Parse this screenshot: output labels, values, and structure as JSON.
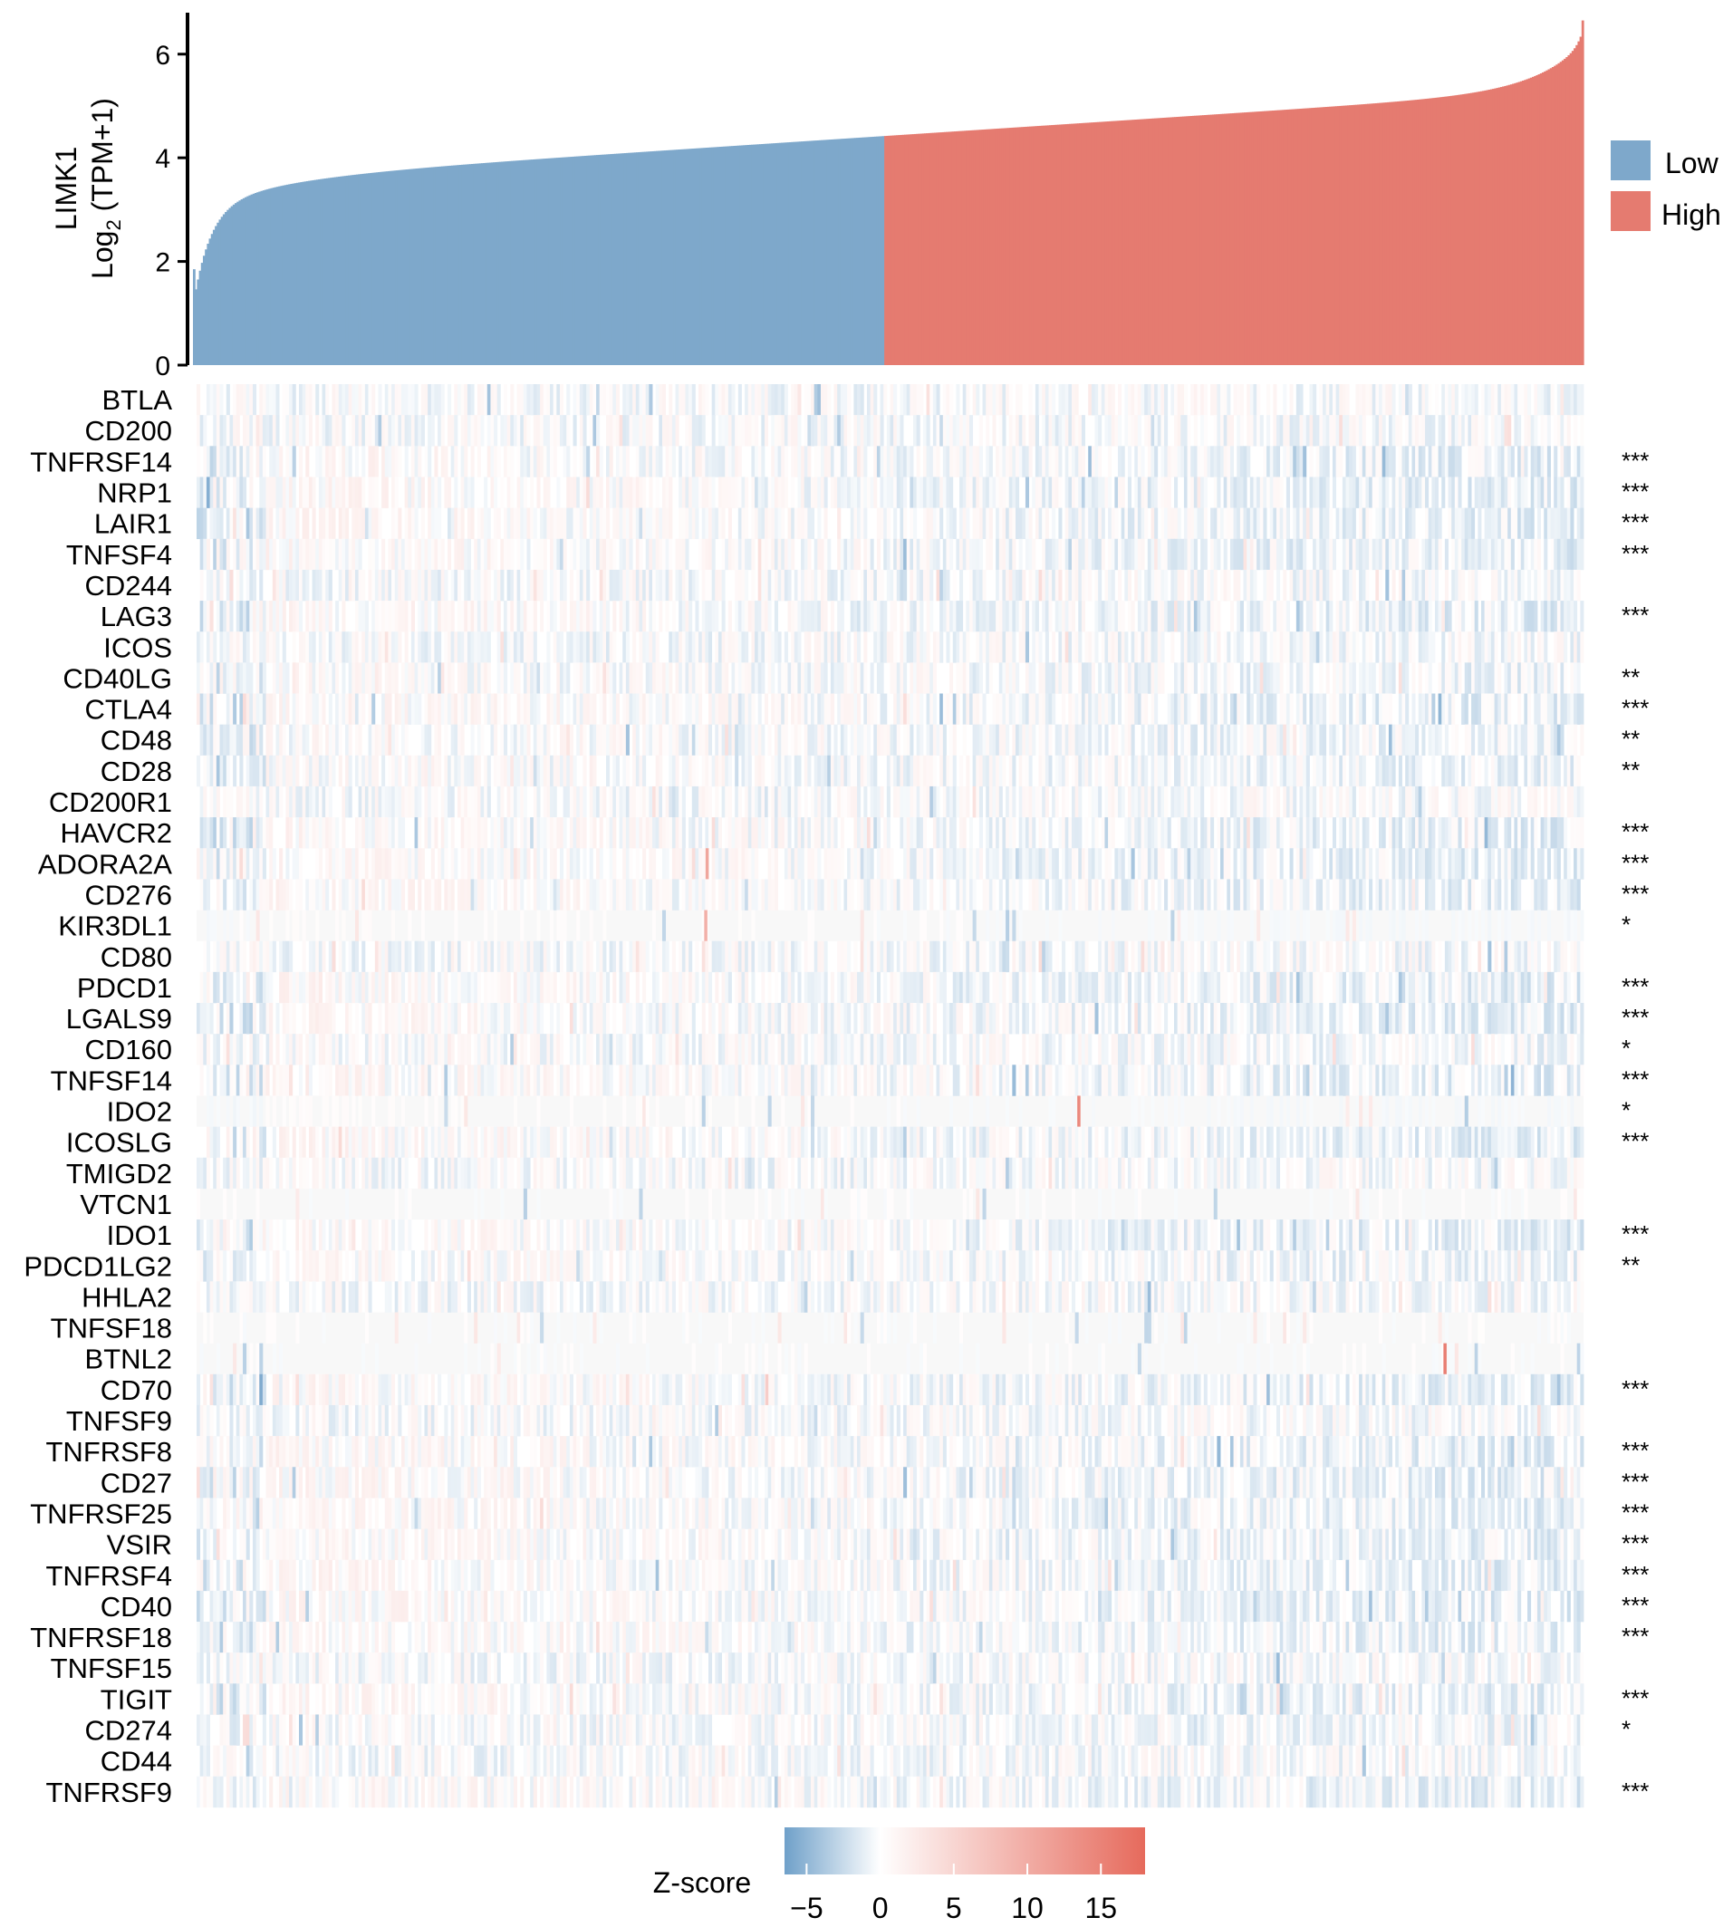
{
  "chart_data": [
    {
      "type": "bar",
      "ylabel_line1": "LIMK1",
      "ylabel_line2_pre": "Log",
      "ylabel_line2_sub": "2",
      "ylabel_line2_post": " (TPM+1)",
      "ylim": [
        0,
        6.8
      ],
      "yticks": [
        "0",
        "2",
        "4",
        "6"
      ],
      "samples_n": 700,
      "split_fraction": 0.497,
      "min_value": 1.85,
      "max_value": 6.65,
      "series": [
        {
          "name": "Low",
          "color": "#7ea8cb"
        },
        {
          "name": "High",
          "color": "#e57b70"
        }
      ],
      "legend_position": "right"
    },
    {
      "type": "heatmap",
      "rows": [
        "BTLA",
        "CD200",
        "TNFRSF14",
        "NRP1",
        "LAIR1",
        "TNFSF4",
        "CD244",
        "LAG3",
        "ICOS",
        "CD40LG",
        "CTLA4",
        "CD48",
        "CD28",
        "CD200R1",
        "HAVCR2",
        "ADORA2A",
        "CD276",
        "KIR3DL1",
        "CD80",
        "PDCD1",
        "LGALS9",
        "CD160",
        "TNFSF14",
        "IDO2",
        "ICOSLG",
        "TMIGD2",
        "VTCN1",
        "IDO1",
        "PDCD1LG2",
        "HHLA2",
        "TNFSF18",
        "BTNL2",
        "CD70",
        "TNFSF9",
        "TNFRSF8",
        "CD27",
        "TNFRSF25",
        "VSIR",
        "TNFRSF4",
        "CD40",
        "TNFRSF18",
        "TNFSF15",
        "TIGIT",
        "CD274",
        "CD44",
        "TNFRSF9"
      ],
      "significance": [
        "",
        "",
        "***",
        "***",
        "***",
        "***",
        "",
        "***",
        "",
        "**",
        "***",
        "**",
        "**",
        "",
        "***",
        "***",
        "***",
        "*",
        "",
        "***",
        "***",
        "*",
        "***",
        "*",
        "***",
        "",
        "",
        "***",
        "**",
        "",
        "",
        "",
        "***",
        "",
        "***",
        "***",
        "***",
        "***",
        "***",
        "***",
        "***",
        "",
        "***",
        "*",
        "",
        "***"
      ],
      "colorbar": {
        "title": "Z-score",
        "ticks": [
          "−5",
          "0",
          "5",
          "10",
          "15"
        ],
        "range": [
          -6.5,
          18
        ],
        "low_color": "#6fa0c9",
        "mid_color": "#ffffff",
        "high_color": "#e66a5c"
      }
    }
  ]
}
